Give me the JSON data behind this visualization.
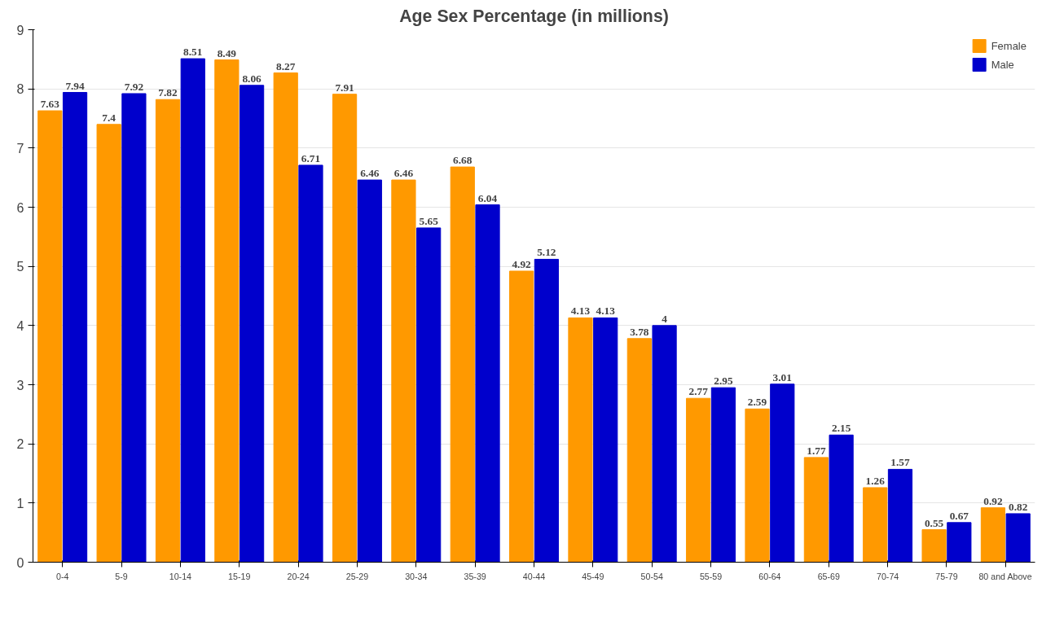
{
  "chart_data": {
    "type": "bar",
    "title": "Age Sex Percentage (in millions)",
    "categories": [
      "0-4",
      "5-9",
      "10-14",
      "15-19",
      "20-24",
      "25-29",
      "30-34",
      "35-39",
      "40-44",
      "45-49",
      "50-54",
      "55-59",
      "60-64",
      "65-69",
      "70-74",
      "75-79",
      "80 and Above"
    ],
    "series": [
      {
        "name": "Female",
        "color": "#ff9900",
        "values": [
          7.63,
          7.4,
          7.82,
          8.49,
          8.27,
          7.91,
          6.46,
          6.68,
          4.92,
          4.13,
          3.78,
          2.77,
          2.59,
          1.77,
          1.26,
          0.55,
          0.92
        ]
      },
      {
        "name": "Male",
        "color": "#0000cc",
        "values": [
          7.94,
          7.92,
          8.51,
          8.06,
          6.71,
          6.46,
          5.65,
          6.04,
          5.12,
          4.13,
          4,
          2.95,
          3.01,
          2.15,
          1.57,
          0.67,
          0.82
        ]
      }
    ],
    "ylim": [
      0,
      9
    ],
    "yticks": [
      0,
      1,
      2,
      3,
      4,
      5,
      6,
      7,
      8,
      9
    ],
    "grid": "y",
    "legend": "top right",
    "data_labels": true
  }
}
